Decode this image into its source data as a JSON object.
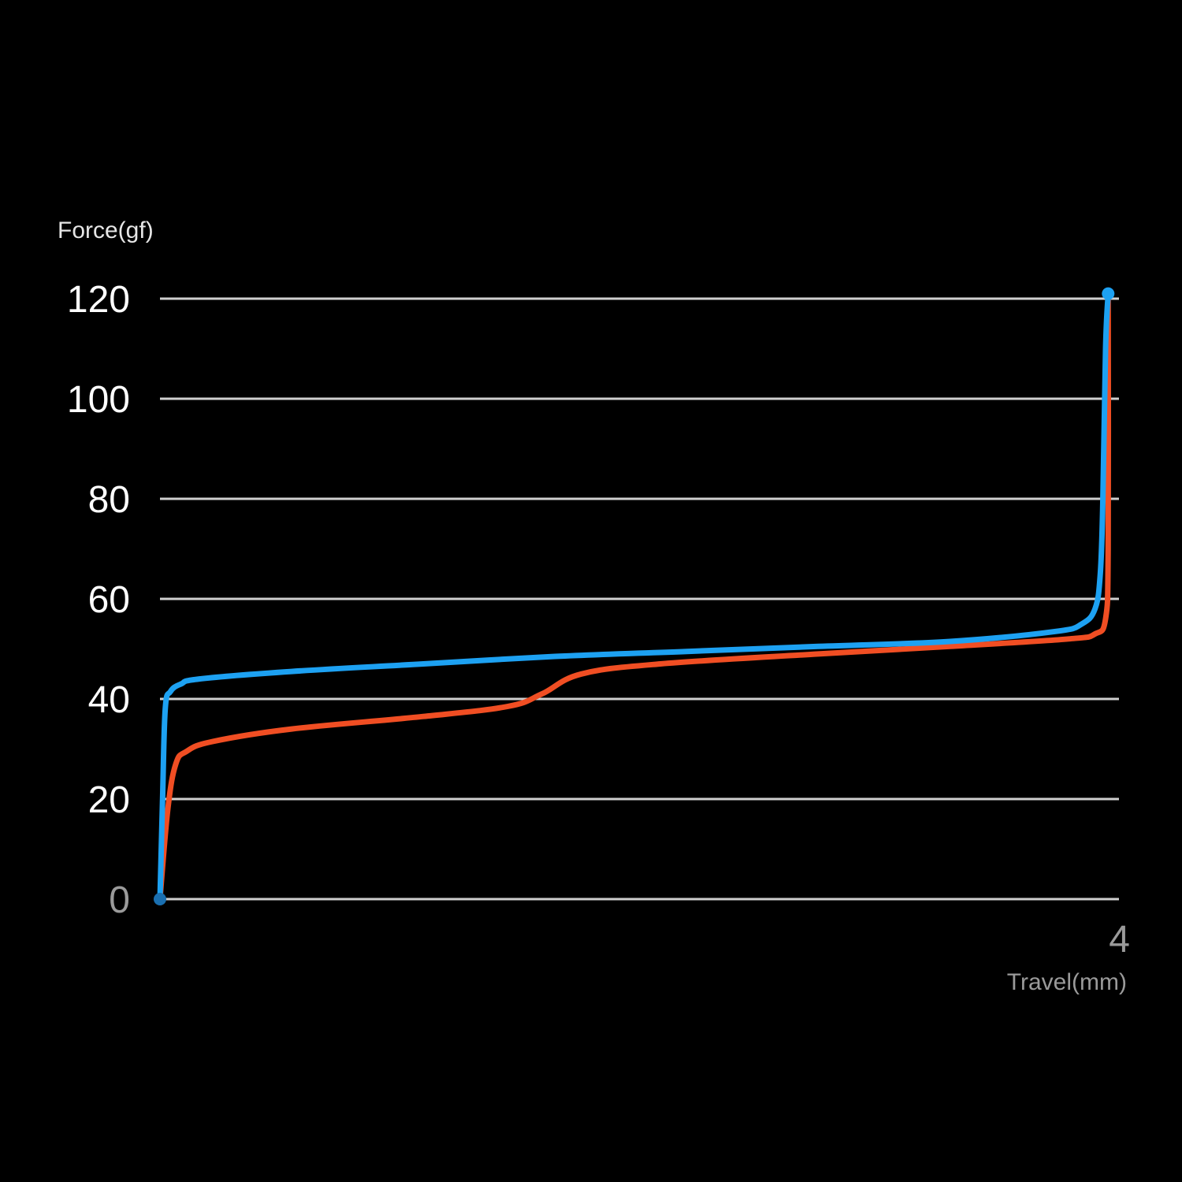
{
  "chart_data": {
    "type": "line",
    "xlabel": "Travel(mm)",
    "ylabel": "Force(gf)",
    "xlim": [
      0,
      4
    ],
    "ylim": [
      0,
      120
    ],
    "y_ticks": [
      "0",
      "20",
      "40",
      "60",
      "80",
      "100",
      "120"
    ],
    "x_tick_labels": [
      "4"
    ],
    "grid": true,
    "colors": {
      "background": "#000000",
      "blue": "#1da1f2",
      "red": "#f04e23",
      "grid": "#cfcfcf"
    },
    "series": [
      {
        "color": "#f04e23",
        "x": [
          0.0,
          0.03,
          0.06,
          0.1,
          0.2,
          0.5,
          1.0,
          1.32,
          1.45,
          1.6,
          1.9,
          2.5,
          3.0,
          3.45,
          3.55,
          3.59,
          3.6,
          3.6
        ],
        "y": [
          0,
          18,
          27,
          29.5,
          31.5,
          34,
          36.5,
          38.5,
          41,
          45,
          47,
          49,
          50.5,
          52,
          53,
          56,
          70,
          120
        ]
      },
      {
        "color": "#1da1f2",
        "x": [
          0.0,
          0.01,
          0.02,
          0.04,
          0.08,
          0.15,
          0.5,
          1.0,
          1.5,
          2.0,
          2.5,
          3.0,
          3.4,
          3.5,
          3.55,
          3.57,
          3.58,
          3.59,
          3.6
        ],
        "y": [
          0,
          20,
          38,
          41.5,
          43,
          44,
          45.5,
          47,
          48.5,
          49.5,
          50.5,
          51.5,
          53.5,
          55,
          58,
          65,
          80,
          110,
          121
        ]
      }
    ]
  }
}
